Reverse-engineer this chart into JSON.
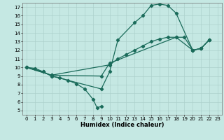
{
  "xlabel": "Humidex (Indice chaleur)",
  "bg_color": "#c5e8e3",
  "line_color": "#1a6b5a",
  "markersize": 2.2,
  "linewidth": 0.9,
  "xlim": [
    -0.5,
    23.5
  ],
  "ylim": [
    4.5,
    17.5
  ],
  "xticks": [
    0,
    1,
    2,
    3,
    4,
    5,
    6,
    7,
    8,
    9,
    10,
    11,
    12,
    13,
    14,
    15,
    16,
    17,
    18,
    19,
    20,
    21,
    22,
    23
  ],
  "yticks": [
    5,
    6,
    7,
    8,
    9,
    10,
    11,
    12,
    13,
    14,
    15,
    16,
    17
  ],
  "curves": [
    [
      [
        0,
        10
      ],
      [
        1,
        9.9
      ],
      [
        2,
        9.5
      ],
      [
        3,
        9.0
      ],
      [
        4,
        8.8
      ],
      [
        5,
        8.5
      ],
      [
        6,
        8.1
      ],
      [
        7,
        7.5
      ],
      [
        8,
        6.3
      ],
      [
        8.5,
        5.3
      ],
      [
        9,
        5.5
      ]
    ],
    [
      [
        0,
        10
      ],
      [
        2,
        9.5
      ],
      [
        3,
        9.0
      ],
      [
        9,
        7.5
      ],
      [
        10,
        9.5
      ],
      [
        11,
        13.2
      ],
      [
        13,
        15.2
      ],
      [
        14,
        16.0
      ],
      [
        15,
        17.2
      ],
      [
        16,
        17.35
      ],
      [
        17,
        17.2
      ],
      [
        18,
        16.3
      ],
      [
        20,
        12.0
      ],
      [
        21,
        12.2
      ],
      [
        22,
        13.2
      ]
    ],
    [
      [
        0,
        10
      ],
      [
        3,
        9.1
      ],
      [
        10,
        10.3
      ],
      [
        11,
        11.0
      ],
      [
        12,
        11.5
      ],
      [
        13,
        12.0
      ],
      [
        14,
        12.5
      ],
      [
        15,
        13.0
      ],
      [
        16,
        13.3
      ],
      [
        17,
        13.5
      ],
      [
        18,
        13.5
      ],
      [
        19,
        13.5
      ],
      [
        20,
        12.0
      ],
      [
        21,
        12.2
      ],
      [
        22,
        13.2
      ]
    ],
    [
      [
        0,
        10
      ],
      [
        3,
        9.1
      ],
      [
        9,
        9.0
      ],
      [
        10,
        10.5
      ],
      [
        18,
        13.5
      ],
      [
        20,
        12.0
      ],
      [
        21,
        12.2
      ],
      [
        22,
        13.2
      ]
    ]
  ]
}
